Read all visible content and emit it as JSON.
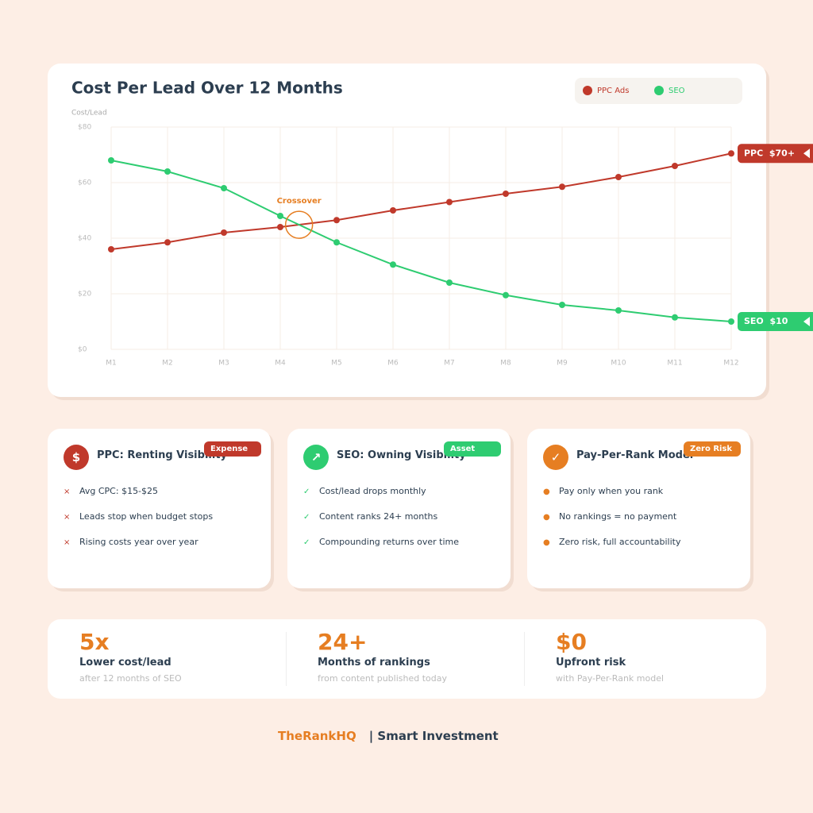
{
  "chart_data": {
    "type": "line",
    "title": "Cost Per Lead Over 12 Months",
    "y_label": "Cost/Lead",
    "categories": [
      "M1",
      "M2",
      "M3",
      "M4",
      "M5",
      "M6",
      "M7",
      "M8",
      "M9",
      "M10",
      "M11",
      "M12"
    ],
    "series": [
      {
        "name": "PPC Ads",
        "color": "#c0392b",
        "values": [
          36,
          38.5,
          42,
          44,
          46.5,
          50,
          53,
          56,
          58.5,
          62,
          66,
          70.5
        ],
        "end_label": "PPC  $70+"
      },
      {
        "name": "SEO",
        "color": "#2ecc71",
        "values": [
          68,
          64,
          58,
          48,
          38.5,
          30.5,
          24,
          19.5,
          16,
          14,
          11.5,
          10
        ],
        "end_label": "SEO  $10"
      }
    ],
    "ylim": [
      0,
      80
    ],
    "yticks": [
      {
        "value": 0,
        "label": "$0"
      },
      {
        "value": 20,
        "label": "$20"
      },
      {
        "value": 40,
        "label": "$40"
      },
      {
        "value": 60,
        "label": "$60"
      },
      {
        "value": 80,
        "label": "$80"
      }
    ],
    "grid": true,
    "legend": "top-right",
    "annotation": {
      "text": "Crossover",
      "color": "#e67e22"
    }
  },
  "cards": [
    {
      "icon": "$",
      "title": "PPC: Renting Visibility",
      "badge": "Expense",
      "color": "#c0392b",
      "marker": "×",
      "items": [
        "Avg CPC: $15-$25",
        "Leads stop when budget stops",
        "Rising costs year over year"
      ]
    },
    {
      "icon": "↗",
      "title": "SEO: Owning Visibility",
      "badge": "Asset",
      "color": "#2ecc71",
      "marker": "✓",
      "items": [
        "Cost/lead drops monthly",
        "Content ranks 24+ months",
        "Compounding returns over time"
      ]
    },
    {
      "icon": "✓",
      "title": "Pay-Per-Rank Model",
      "badge": "Zero Risk",
      "color": "#e67e22",
      "marker": "●",
      "items": [
        "Pay only when you rank",
        "No rankings = no payment",
        "Zero risk, full accountability"
      ]
    }
  ],
  "stats": [
    {
      "value": "5x",
      "label": "Lower cost/lead",
      "note": "after 12 months of SEO"
    },
    {
      "value": "24+",
      "label": "Months of rankings",
      "note": "from content published today"
    },
    {
      "value": "$0",
      "label": "Upfront risk",
      "note": "with Pay-Per-Rank model"
    }
  ],
  "footer": {
    "brand": "TheRankHQ",
    "tagline": "| Smart Investment"
  }
}
